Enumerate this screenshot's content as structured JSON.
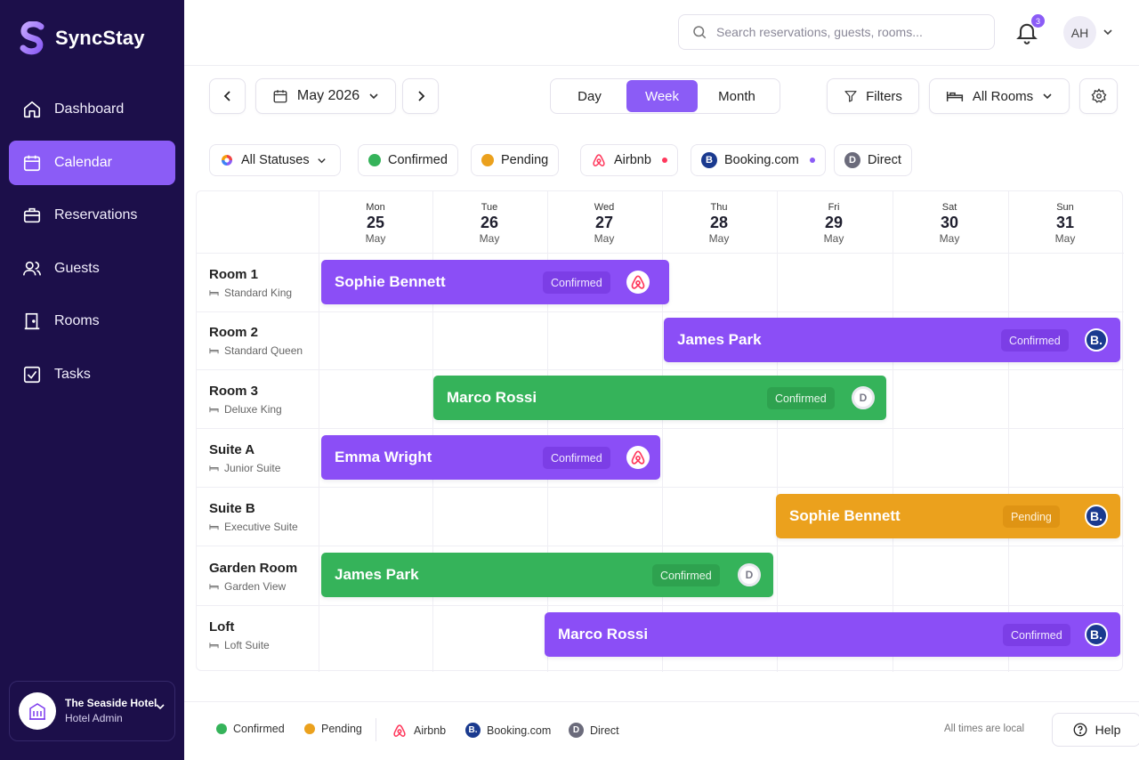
{
  "app": {
    "name": "SyncStay"
  },
  "sidebar": {
    "items": [
      {
        "label": "Dashboard",
        "icon": "home-icon"
      },
      {
        "label": "Calendar",
        "icon": "calendar-icon",
        "active": true
      },
      {
        "label": "Reservations",
        "icon": "briefcase-icon"
      },
      {
        "label": "Guests",
        "icon": "users-icon"
      },
      {
        "label": "Rooms",
        "icon": "door-icon"
      },
      {
        "label": "Tasks",
        "icon": "checkbox-icon"
      }
    ],
    "hotel": {
      "name": "The Seaside Hotel",
      "role": "Hotel Admin"
    }
  },
  "header": {
    "search_placeholder": "Search reservations, guests, rooms...",
    "notification_count": "3",
    "user_initials": "AH"
  },
  "toolbar": {
    "month_label": "May 2026",
    "views": [
      "Day",
      "Week",
      "Month"
    ],
    "active_view": "Week",
    "filters_label": "Filters",
    "rooms_filter_label": "All Rooms"
  },
  "filters": {
    "all_statuses": "All Statuses",
    "confirmed": "Confirmed",
    "pending": "Pending",
    "airbnb": "Airbnb",
    "booking": "Booking.com",
    "direct": "Direct"
  },
  "colors": {
    "accent": "#8b5cf6",
    "sidebar_bg": "#1c0f4a",
    "confirmed": "#35b35a",
    "pending": "#eba11d",
    "airbnb": "#ff385c",
    "booking": "#1a3a8f",
    "direct": "#6b6b7b"
  },
  "calendar": {
    "days": [
      {
        "dow": "Mon",
        "num": "25",
        "mon": "May"
      },
      {
        "dow": "Tue",
        "num": "26",
        "mon": "May"
      },
      {
        "dow": "Wed",
        "num": "27",
        "mon": "May"
      },
      {
        "dow": "Thu",
        "num": "28",
        "mon": "May"
      },
      {
        "dow": "Fri",
        "num": "29",
        "mon": "May"
      },
      {
        "dow": "Sat",
        "num": "30",
        "mon": "May"
      },
      {
        "dow": "Sun",
        "num": "31",
        "mon": "May"
      }
    ],
    "rooms": [
      {
        "name": "Room 1",
        "type": "Standard King"
      },
      {
        "name": "Room 2",
        "type": "Standard Queen"
      },
      {
        "name": "Room 3",
        "type": "Deluxe King"
      },
      {
        "name": "Suite A",
        "type": "Junior Suite"
      },
      {
        "name": "Suite B",
        "type": "Executive Suite"
      },
      {
        "name": "Garden Room",
        "type": "Garden View"
      },
      {
        "name": "Loft",
        "type": "Loft Suite"
      }
    ],
    "bookings": [
      {
        "room": 0,
        "guest": "Sophie Bennett",
        "status": "Confirmed",
        "source": "airbnb",
        "color": "purple"
      },
      {
        "room": 1,
        "guest": "James Park",
        "status": "Confirmed",
        "source": "booking",
        "color": "purple"
      },
      {
        "room": 2,
        "guest": "Marco Rossi",
        "status": "Confirmed",
        "source": "direct",
        "color": "green"
      },
      {
        "room": 3,
        "guest": "Emma Wright",
        "status": "Confirmed",
        "source": "airbnb",
        "color": "purple"
      },
      {
        "room": 4,
        "guest": "Sophie Bennett",
        "status": "Pending",
        "source": "booking",
        "color": "orange"
      },
      {
        "room": 5,
        "guest": "James Park",
        "status": "Confirmed",
        "source": "direct",
        "color": "green"
      },
      {
        "room": 6,
        "guest": "Marco Rossi",
        "status": "Confirmed",
        "source": "booking",
        "color": "purple"
      }
    ]
  },
  "legend": {
    "confirmed": "Confirmed",
    "pending": "Pending",
    "airbnb": "Airbnb",
    "booking": "Booking.com",
    "direct": "Direct",
    "note": "All times are local",
    "help": "Help"
  },
  "glyphs": {
    "booking": "B.",
    "direct": "D",
    "booking_chip": "B"
  }
}
